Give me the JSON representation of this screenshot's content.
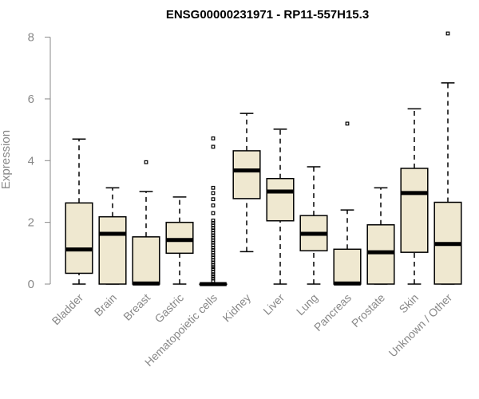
{
  "chart_data": {
    "type": "boxplot",
    "title": "ENSG00000231971 - RP11-557H15.3",
    "ylabel": "Expression",
    "ylim": [
      0,
      8.3
    ],
    "yticks": [
      0,
      2,
      4,
      6,
      8
    ],
    "box_color": "#efe8d0",
    "categories": [
      "Bladder",
      "Brain",
      "Breast",
      "Gastric",
      "Hematopoietic cells",
      "Kidney",
      "Liver",
      "Lung",
      "Pancreas",
      "Prostate",
      "Skin",
      "Unknown / Other"
    ],
    "boxes": [
      {
        "min": 0.0,
        "q1": 0.35,
        "median": 1.12,
        "q3": 2.63,
        "max": 4.7,
        "outliers": []
      },
      {
        "min": 0.0,
        "q1": 0.0,
        "median": 1.63,
        "q3": 2.18,
        "max": 3.12,
        "outliers": []
      },
      {
        "min": 0.0,
        "q1": 0.0,
        "median": 0.02,
        "q3": 1.53,
        "max": 3.0,
        "outliers": [
          3.95
        ]
      },
      {
        "min": 0.0,
        "q1": 1.0,
        "median": 1.43,
        "q3": 2.0,
        "max": 2.82,
        "outliers": []
      },
      {
        "min": 0.0,
        "q1": 0.0,
        "median": 0.0,
        "q3": 0.0,
        "max": 0.0,
        "outliers": [
          0.1,
          0.18,
          0.25,
          0.32,
          0.4,
          0.48,
          0.55,
          0.62,
          0.7,
          0.78,
          0.86,
          0.94,
          1.02,
          1.1,
          1.18,
          1.26,
          1.34,
          1.42,
          1.5,
          1.58,
          1.66,
          1.74,
          1.82,
          1.9,
          1.98,
          2.06,
          2.3,
          2.55,
          2.75,
          2.95,
          3.12,
          4.45,
          4.72
        ]
      },
      {
        "min": 1.05,
        "q1": 2.77,
        "median": 3.68,
        "q3": 4.32,
        "max": 5.53,
        "outliers": []
      },
      {
        "min": 0.0,
        "q1": 2.05,
        "median": 3.0,
        "q3": 3.42,
        "max": 5.02,
        "outliers": []
      },
      {
        "min": 0.0,
        "q1": 1.08,
        "median": 1.63,
        "q3": 2.22,
        "max": 3.8,
        "outliers": []
      },
      {
        "min": 0.0,
        "q1": 0.0,
        "median": 0.02,
        "q3": 1.13,
        "max": 2.4,
        "outliers": [
          5.2
        ]
      },
      {
        "min": 0.0,
        "q1": 0.0,
        "median": 1.03,
        "q3": 1.92,
        "max": 3.12,
        "outliers": []
      },
      {
        "min": 0.0,
        "q1": 1.03,
        "median": 2.95,
        "q3": 3.75,
        "max": 5.68,
        "outliers": []
      },
      {
        "min": 0.0,
        "q1": 0.0,
        "median": 1.3,
        "q3": 2.65,
        "max": 6.52,
        "outliers": [
          8.12
        ]
      }
    ]
  }
}
